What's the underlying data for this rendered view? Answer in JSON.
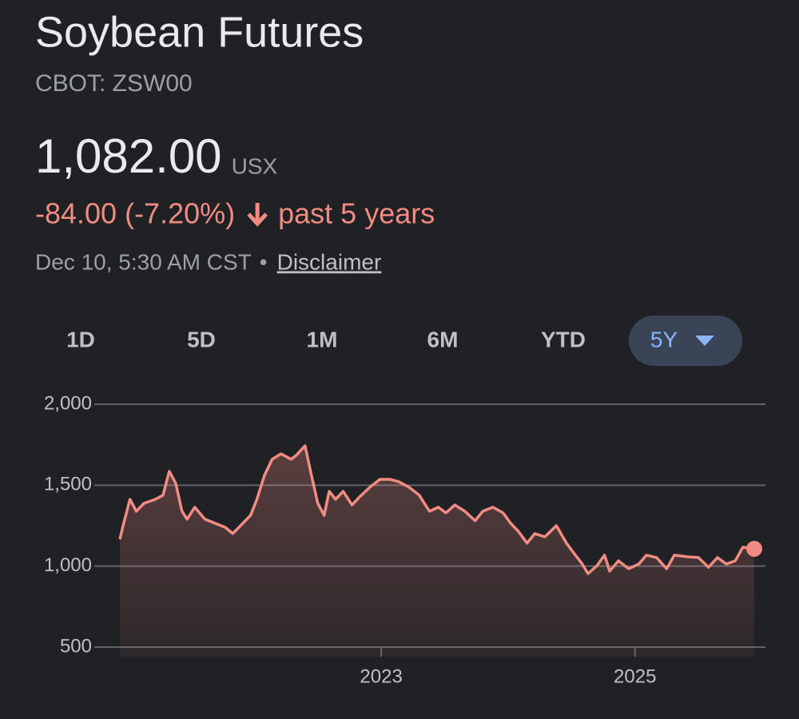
{
  "header": {
    "title": "Soybean Futures",
    "symbol": "CBOT: ZSW00",
    "price": "1,082.00",
    "currency": "USX",
    "change": "-84.00 (-7.20%)",
    "period": "past 5 years",
    "timestamp": "Dec 10, 5:30 AM CST",
    "separator": "•",
    "disclaimer": "Disclaimer"
  },
  "tabs": [
    "1D",
    "5D",
    "1M",
    "6M",
    "YTD",
    "5Y"
  ],
  "chart_data": {
    "type": "line",
    "color": "#f28b82",
    "x": [
      2020.94,
      2020.97,
      2021.02,
      2021.07,
      2021.13,
      2021.22,
      2021.28,
      2021.33,
      2021.38,
      2021.43,
      2021.47,
      2021.53,
      2021.61,
      2021.69,
      2021.77,
      2021.83,
      2021.91,
      2021.97,
      2022.02,
      2022.08,
      2022.14,
      2022.21,
      2022.29,
      2022.33,
      2022.4,
      2022.45,
      2022.5,
      2022.55,
      2022.59,
      2022.64,
      2022.7,
      2022.77,
      2022.83,
      2022.91,
      2022.99,
      2023.07,
      2023.14,
      2023.22,
      2023.3,
      2023.38,
      2023.45,
      2023.51,
      2023.58,
      2023.66,
      2023.74,
      2023.8,
      2023.88,
      2023.96,
      2024.02,
      2024.08,
      2024.15,
      2024.21,
      2024.29,
      2024.38,
      2024.46,
      2024.53,
      2024.58,
      2024.63,
      2024.7,
      2024.76,
      2024.8,
      2024.87,
      2024.95,
      2025.03,
      2025.09,
      2025.17,
      2025.25,
      2025.31,
      2025.41,
      2025.5,
      2025.58,
      2025.65,
      2025.72,
      2025.79,
      2025.85,
      2025.94
    ],
    "values": [
      1166,
      1265,
      1413,
      1339,
      1388,
      1413,
      1438,
      1586,
      1512,
      1339,
      1290,
      1364,
      1290,
      1265,
      1240,
      1201,
      1265,
      1314,
      1413,
      1561,
      1660,
      1694,
      1660,
      1684,
      1743,
      1561,
      1388,
      1314,
      1462,
      1413,
      1462,
      1378,
      1428,
      1487,
      1536,
      1536,
      1521,
      1487,
      1438,
      1339,
      1364,
      1329,
      1378,
      1339,
      1280,
      1339,
      1364,
      1329,
      1265,
      1216,
      1142,
      1201,
      1181,
      1250,
      1142,
      1068,
      1018,
      954,
      1003,
      1068,
      969,
      1033,
      984,
      1013,
      1068,
      1053,
      984,
      1068,
      1058,
      1053,
      993,
      1053,
      1013,
      1033,
      1117,
      1107
    ],
    "xlim": [
      2020.94,
      2025.94
    ],
    "xticks": [
      2023,
      2025
    ],
    "ylim": [
      500,
      2000
    ],
    "yticks": [
      {
        "value": 500,
        "label": "500"
      },
      {
        "value": 1000,
        "label": "1,000"
      },
      {
        "value": 1500,
        "label": "1,500"
      },
      {
        "value": 2000,
        "label": "2,000"
      }
    ],
    "grid": true
  }
}
